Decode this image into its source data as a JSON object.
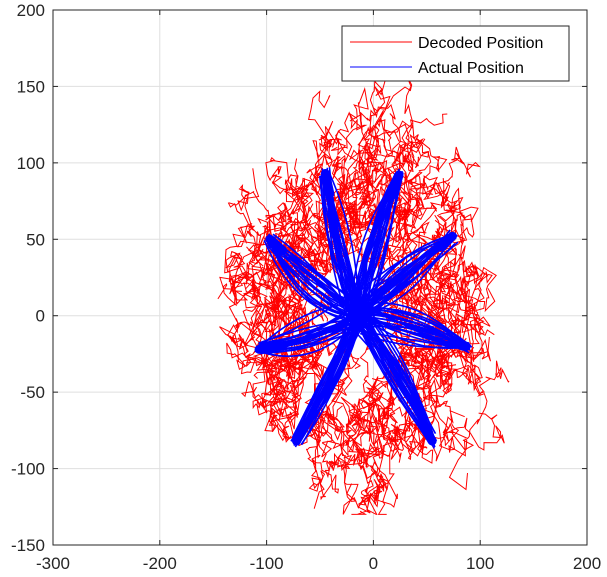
{
  "chart_data": {
    "type": "line",
    "title": "",
    "xlabel": "",
    "ylabel": "",
    "xlim": [
      -300,
      200
    ],
    "ylim": [
      -150,
      200
    ],
    "xticks": [
      -300,
      -200,
      -100,
      0,
      100,
      200
    ],
    "yticks": [
      -150,
      -100,
      -50,
      0,
      50,
      100,
      150,
      200
    ],
    "grid": true,
    "legend_position": "top-right",
    "center": [
      -15,
      0
    ],
    "series": [
      {
        "name": "Decoded Position",
        "color": "#ff0000",
        "description_targets": [
          [
            -45,
            95
          ],
          [
            25,
            95
          ],
          [
            75,
            52
          ],
          [
            88,
            -20
          ],
          [
            55,
            -80
          ],
          [
            -72,
            -82
          ],
          [
            -110,
            -20
          ],
          [
            -100,
            50
          ]
        ]
      },
      {
        "name": "Actual Position",
        "color": "#0000ff",
        "targets": [
          [
            -45,
            93
          ],
          [
            24,
            92
          ],
          [
            74,
            52
          ],
          [
            87,
            -20
          ],
          [
            55,
            -82
          ],
          [
            -72,
            -82
          ],
          [
            -107,
            -22
          ],
          [
            -97,
            50
          ]
        ]
      }
    ]
  }
}
